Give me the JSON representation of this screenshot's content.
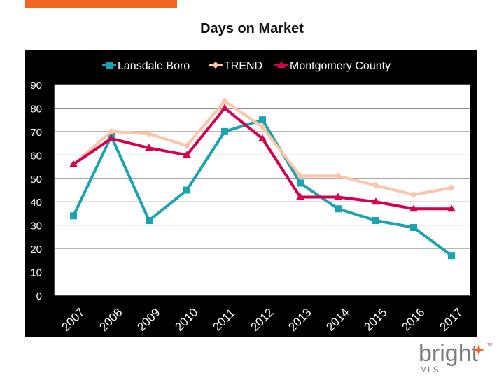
{
  "chart_data": {
    "type": "line",
    "title": "Days on Market",
    "xlabel": "",
    "ylabel": "",
    "categories": [
      "2007",
      "2008",
      "2009",
      "2010",
      "2011",
      "2012",
      "2013",
      "2014",
      "2015",
      "2016",
      "2017"
    ],
    "ylim": [
      0,
      90
    ],
    "yticks": [
      0,
      10,
      20,
      30,
      40,
      50,
      60,
      70,
      80,
      90
    ],
    "grid": true,
    "legend": "top",
    "series": [
      {
        "name": "Lansdale Boro",
        "marker": "square",
        "color": "#1aa3b0",
        "values": [
          34,
          68,
          32,
          45,
          70,
          75,
          48,
          37,
          32,
          29,
          17
        ]
      },
      {
        "name": "TREND",
        "marker": "diamond",
        "color": "#ffc4a8",
        "values": [
          56,
          70,
          69,
          64,
          83,
          72,
          51,
          51,
          47,
          43,
          46
        ]
      },
      {
        "name": "Montgomery County",
        "marker": "triangle",
        "color": "#d6004f",
        "values": [
          56,
          67,
          63,
          60,
          80,
          67,
          42,
          42,
          40,
          37,
          37
        ]
      }
    ]
  },
  "brand": {
    "accent": "#f26522",
    "logo_word": "bright",
    "logo_sub": "MLS",
    "logo_tm": "TM"
  }
}
